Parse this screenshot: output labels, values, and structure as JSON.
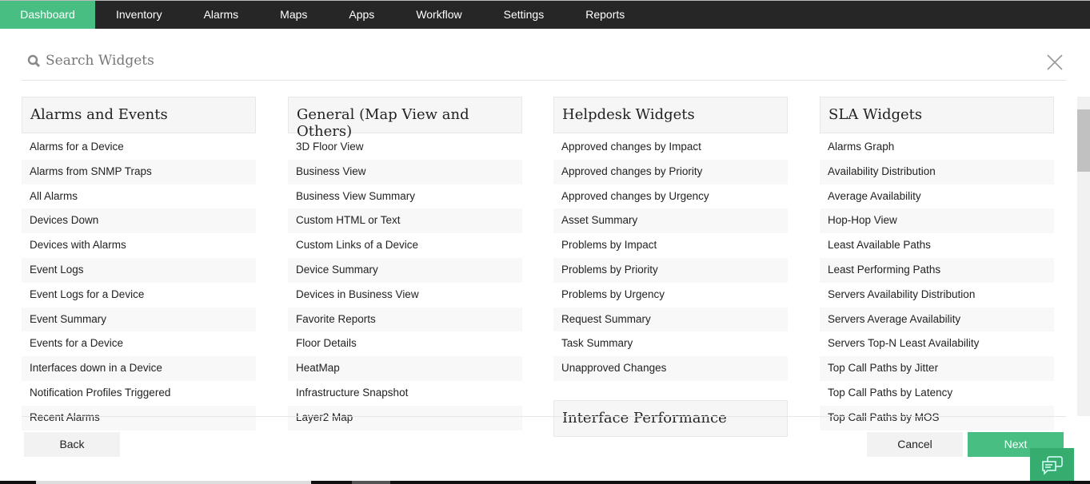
{
  "nav": {
    "items": [
      "Dashboard",
      "Inventory",
      "Alarms",
      "Maps",
      "Apps",
      "Workflow",
      "Settings",
      "Reports"
    ],
    "active": "Dashboard",
    "accent": "#49be83"
  },
  "search": {
    "placeholder": "Search Widgets"
  },
  "columns": [
    {
      "title": "Alarms and Events",
      "items": [
        "Alarms for a Device",
        "Alarms from SNMP Traps",
        "All Alarms",
        "Devices Down",
        "Devices with Alarms",
        "Event Logs",
        "Event Logs for a Device",
        "Event Summary",
        "Events for a Device",
        "Interfaces down in a Device",
        "Notification Profiles Triggered",
        "Recent Alarms"
      ]
    },
    {
      "title": "General (Map View and Others)",
      "items": [
        "3D Floor View",
        "Business View",
        "Business View Summary",
        "Custom HTML or Text",
        "Custom Links of a Device",
        "Device Summary",
        "Devices in Business View",
        "Favorite Reports",
        "Floor Details",
        "HeatMap",
        "Infrastructure Snapshot",
        "Layer2 Map"
      ]
    },
    {
      "title": "Helpdesk Widgets",
      "items": [
        "Approved changes by Impact",
        "Approved changes by Priority",
        "Approved changes by Urgency",
        "Asset Summary",
        "Problems by Impact",
        "Problems by Priority",
        "Problems by Urgency",
        "Request Summary",
        "Task Summary",
        "Unapproved Changes"
      ],
      "next_title": "Interface Performance"
    },
    {
      "title": "SLA Widgets",
      "items": [
        "Alarms Graph",
        "Availability Distribution",
        "Average Availability",
        "Hop-Hop View",
        "Least Available Paths",
        "Least Performing Paths",
        "Servers Availability Distribution",
        "Servers Average Availability",
        "Servers Top-N Least Availability",
        "Top Call Paths by Jitter",
        "Top Call Paths by Latency",
        "Top Call Paths by MOS"
      ]
    }
  ],
  "buttons": {
    "back": "Back",
    "cancel": "Cancel",
    "next": "Next"
  }
}
